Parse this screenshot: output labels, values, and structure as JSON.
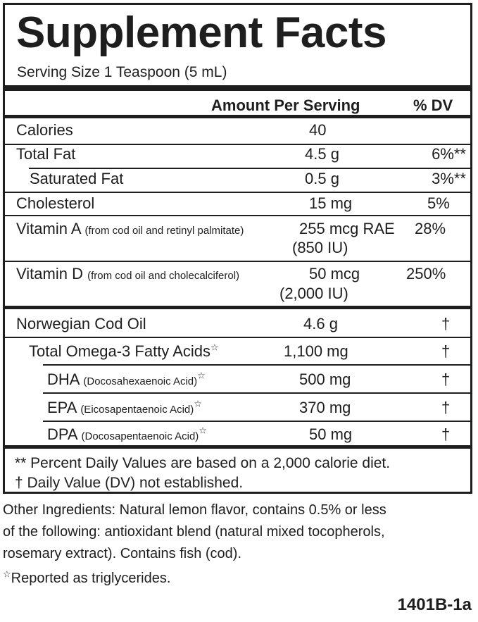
{
  "title": "Supplement Facts",
  "serving_size": "Serving Size 1 Teaspoon (5 mL)",
  "header": {
    "amount": "Amount Per Serving",
    "dv": "% DV"
  },
  "nutrients": [
    {
      "name": "Calories",
      "note": "",
      "amount": "40",
      "amount2": "",
      "dv": ""
    },
    {
      "name": "Total Fat",
      "note": "",
      "amount": "4.5 g",
      "amount2": "",
      "dv": "6%**"
    },
    {
      "name": "Saturated Fat",
      "note": "",
      "amount": "0.5 g",
      "amount2": "",
      "dv": "3%**"
    },
    {
      "name": "Cholesterol",
      "note": "",
      "amount": "15 mg",
      "amount2": "",
      "dv": "5%"
    },
    {
      "name": "Vitamin A",
      "note": "(from cod oil and retinyl palmitate)",
      "amount": "255 mcg RAE",
      "amount2": "(850 IU)",
      "dv": "28%"
    },
    {
      "name": "Vitamin D",
      "note": "(from cod oil and cholecalciferol)",
      "amount": "50 mcg",
      "amount2": "(2,000 IU)",
      "dv": "250%"
    }
  ],
  "ingredients": [
    {
      "name": "Norwegian Cod Oil",
      "note": "",
      "star": "",
      "amount": "4.6 g",
      "dv": "†"
    },
    {
      "name": "Total Omega-3 Fatty Acids",
      "note": "",
      "star": "☆",
      "amount": "1,100 mg",
      "dv": "†"
    },
    {
      "name": "DHA",
      "note": "(Docosahexaenoic Acid)",
      "star": "☆",
      "amount": "500 mg",
      "dv": "†"
    },
    {
      "name": "EPA",
      "note": "(Eicosapentaenoic Acid)",
      "star": "☆",
      "amount": "370 mg",
      "dv": "†"
    },
    {
      "name": "DPA",
      "note": "(Docosapentaenoic Acid)",
      "star": "☆",
      "amount": "50 mg",
      "dv": "†"
    }
  ],
  "footnotes": [
    "** Percent Daily Values are based on a 2,000 calorie diet.",
    "† Daily Value (DV) not established."
  ],
  "other_ingredients": [
    "Other Ingredients: Natural lemon flavor, contains 0.5% or less",
    "of the following: antioxidant blend (natural mixed tocopherols,",
    "rosemary extract). Contains fish (cod)."
  ],
  "triglyceride_note": {
    "star": "☆",
    "text": "Reported as triglycerides."
  },
  "code": "1401B-1a"
}
